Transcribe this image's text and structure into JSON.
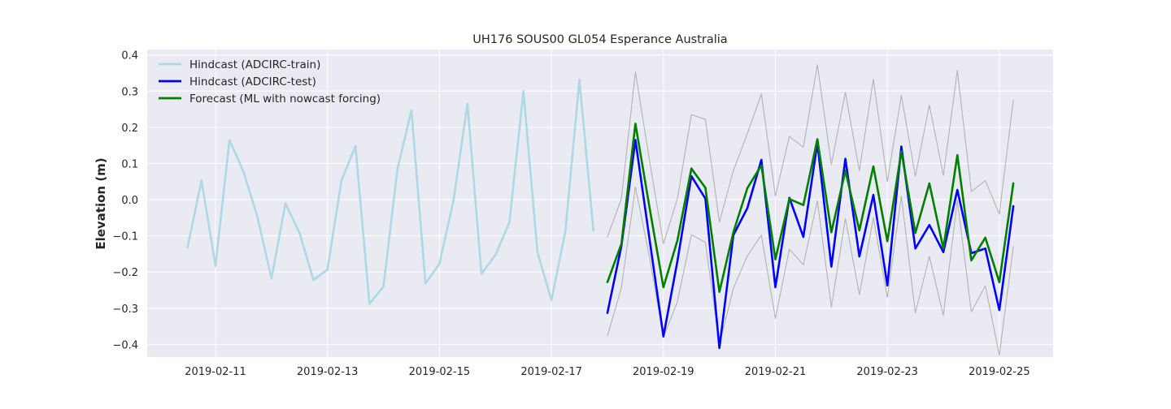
{
  "chart_data": {
    "type": "line",
    "title": "UH176 SOUS00 GL054 Esperance Australia",
    "xlabel": "",
    "ylabel": "Elevation (m)",
    "x_ticks": [
      "2019-02-11",
      "2019-02-13",
      "2019-02-15",
      "2019-02-17",
      "2019-02-19",
      "2019-02-21",
      "2019-02-23",
      "2019-02-25"
    ],
    "y_ticks": [
      "−0.4",
      "−0.3",
      "−0.2",
      "−0.1",
      "0.0",
      "0.1",
      "0.2",
      "0.3",
      "0.4"
    ],
    "ylim": [
      -0.435,
      0.415
    ],
    "grid": true,
    "legend_position": "top-left",
    "colors": {
      "background": "#eaeaf2",
      "grid": "#ffffff",
      "train": "#add8e6",
      "test": "#0000ff",
      "forecast": "#008000",
      "bounds": "#b3b3b3"
    },
    "series": [
      {
        "name": "Hindcast (ADCIRC-train)",
        "x": [
          "2019-02-10 12:00",
          "2019-02-10 18:00",
          "2019-02-11 00:00",
          "2019-02-11 06:00",
          "2019-02-11 12:00",
          "2019-02-11 18:00",
          "2019-02-12 00:00",
          "2019-02-12 06:00",
          "2019-02-12 12:00",
          "2019-02-12 18:00",
          "2019-02-13 00:00",
          "2019-02-13 06:00",
          "2019-02-13 12:00",
          "2019-02-13 18:00",
          "2019-02-14 00:00",
          "2019-02-14 06:00",
          "2019-02-14 12:00",
          "2019-02-14 18:00",
          "2019-02-15 00:00",
          "2019-02-15 06:00",
          "2019-02-15 12:00",
          "2019-02-15 18:00",
          "2019-02-16 00:00",
          "2019-02-16 06:00",
          "2019-02-16 12:00",
          "2019-02-16 18:00",
          "2019-02-17 00:00",
          "2019-02-17 06:00",
          "2019-02-17 12:00",
          "2019-02-17 18:00"
        ],
        "y": [
          -0.133,
          0.053,
          -0.183,
          0.165,
          0.077,
          -0.048,
          -0.218,
          -0.01,
          -0.092,
          -0.222,
          -0.193,
          0.053,
          0.148,
          -0.288,
          -0.24,
          0.085,
          0.247,
          -0.232,
          -0.177,
          -0.003,
          0.265,
          -0.205,
          -0.153,
          -0.062,
          0.3,
          -0.145,
          -0.278,
          -0.087,
          0.332,
          -0.085
        ]
      },
      {
        "name": "Hindcast (ADCIRC-test)",
        "x": [
          "2019-02-18 00:00",
          "2019-02-18 06:00",
          "2019-02-18 12:00",
          "2019-02-18 18:00",
          "2019-02-19 00:00",
          "2019-02-19 06:00",
          "2019-02-19 12:00",
          "2019-02-19 18:00",
          "2019-02-20 00:00",
          "2019-02-20 06:00",
          "2019-02-20 12:00",
          "2019-02-20 18:00",
          "2019-02-21 00:00",
          "2019-02-21 06:00",
          "2019-02-21 12:00",
          "2019-02-21 18:00",
          "2019-02-22 00:00",
          "2019-02-22 06:00",
          "2019-02-22 12:00",
          "2019-02-22 18:00",
          "2019-02-23 00:00",
          "2019-02-23 06:00",
          "2019-02-23 12:00",
          "2019-02-23 18:00",
          "2019-02-24 00:00",
          "2019-02-24 06:00",
          "2019-02-24 12:00",
          "2019-02-24 18:00",
          "2019-02-25 00:00",
          "2019-02-25 06:00"
        ],
        "y": [
          -0.313,
          -0.128,
          0.165,
          -0.107,
          -0.378,
          -0.17,
          0.065,
          0.003,
          -0.41,
          -0.098,
          -0.023,
          0.11,
          -0.242,
          0.005,
          -0.103,
          0.156,
          -0.185,
          0.113,
          -0.157,
          0.013,
          -0.237,
          0.147,
          -0.135,
          -0.07,
          -0.145,
          0.027,
          -0.148,
          -0.135,
          -0.305,
          -0.018
        ]
      },
      {
        "name": "Forecast (ML with nowcast forcing)",
        "x": [
          "2019-02-18 00:00",
          "2019-02-18 06:00",
          "2019-02-18 12:00",
          "2019-02-18 18:00",
          "2019-02-19 00:00",
          "2019-02-19 06:00",
          "2019-02-19 12:00",
          "2019-02-19 18:00",
          "2019-02-20 00:00",
          "2019-02-20 06:00",
          "2019-02-20 12:00",
          "2019-02-20 18:00",
          "2019-02-21 00:00",
          "2019-02-21 06:00",
          "2019-02-21 12:00",
          "2019-02-21 18:00",
          "2019-02-22 00:00",
          "2019-02-22 06:00",
          "2019-02-22 12:00",
          "2019-02-22 18:00",
          "2019-02-23 00:00",
          "2019-02-23 06:00",
          "2019-02-23 12:00",
          "2019-02-23 18:00",
          "2019-02-24 00:00",
          "2019-02-24 06:00",
          "2019-02-24 12:00",
          "2019-02-24 18:00",
          "2019-02-25 00:00",
          "2019-02-25 06:00"
        ],
        "y": [
          -0.228,
          -0.122,
          0.21,
          -0.02,
          -0.242,
          -0.113,
          0.086,
          0.033,
          -0.255,
          -0.09,
          0.032,
          0.095,
          -0.165,
          0.002,
          -0.015,
          0.167,
          -0.09,
          0.08,
          -0.085,
          0.092,
          -0.115,
          0.134,
          -0.092,
          0.045,
          -0.135,
          0.123,
          -0.168,
          -0.105,
          -0.228,
          0.045
        ]
      },
      {
        "x": [
          "2019-02-18 00:00",
          "2019-02-18 06:00",
          "2019-02-18 12:00",
          "2019-02-18 18:00",
          "2019-02-19 00:00",
          "2019-02-19 06:00",
          "2019-02-19 12:00",
          "2019-02-19 18:00",
          "2019-02-20 00:00",
          "2019-02-20 06:00",
          "2019-02-20 12:00",
          "2019-02-20 18:00",
          "2019-02-21 00:00",
          "2019-02-21 06:00",
          "2019-02-21 12:00",
          "2019-02-21 18:00",
          "2019-02-22 00:00",
          "2019-02-22 06:00",
          "2019-02-22 12:00",
          "2019-02-22 18:00",
          "2019-02-23 00:00",
          "2019-02-23 06:00",
          "2019-02-23 12:00",
          "2019-02-23 18:00",
          "2019-02-24 00:00",
          "2019-02-24 06:00",
          "2019-02-24 12:00",
          "2019-02-24 18:00",
          "2019-02-25 00:00",
          "2019-02-25 06:00"
        ],
        "y": [
          -0.103,
          0.003,
          0.353,
          0.11,
          -0.122,
          0.003,
          0.235,
          0.222,
          -0.062,
          0.08,
          0.183,
          0.292,
          0.01,
          0.175,
          0.145,
          0.373,
          0.097,
          0.297,
          0.08,
          0.333,
          0.05,
          0.288,
          0.065,
          0.262,
          0.067,
          0.357,
          0.022,
          0.053,
          -0.04,
          0.275
        ],
        "color": "#b3b3b3"
      },
      {
        "x": [
          "2019-02-18 00:00",
          "2019-02-18 06:00",
          "2019-02-18 12:00",
          "2019-02-18 18:00",
          "2019-02-19 00:00",
          "2019-02-19 06:00",
          "2019-02-19 12:00",
          "2019-02-19 18:00",
          "2019-02-20 00:00",
          "2019-02-20 06:00",
          "2019-02-20 12:00",
          "2019-02-20 18:00",
          "2019-02-21 00:00",
          "2019-02-21 06:00",
          "2019-02-21 12:00",
          "2019-02-21 18:00",
          "2019-02-22 00:00",
          "2019-02-22 06:00",
          "2019-02-22 12:00",
          "2019-02-22 18:00",
          "2019-02-23 00:00",
          "2019-02-23 06:00",
          "2019-02-23 12:00",
          "2019-02-23 18:00",
          "2019-02-24 00:00",
          "2019-02-24 06:00",
          "2019-02-24 12:00",
          "2019-02-24 18:00",
          "2019-02-25 00:00",
          "2019-02-25 06:00"
        ],
        "y": [
          -0.377,
          -0.243,
          0.035,
          -0.157,
          -0.38,
          -0.282,
          -0.097,
          -0.118,
          -0.4,
          -0.245,
          -0.155,
          -0.098,
          -0.328,
          -0.137,
          -0.18,
          -0.003,
          -0.297,
          -0.052,
          -0.263,
          -0.05,
          -0.27,
          0.01,
          -0.313,
          -0.157,
          -0.32,
          -0.002,
          -0.31,
          -0.238,
          -0.43,
          -0.13
        ],
        "color": "#b3b3b3"
      }
    ]
  }
}
